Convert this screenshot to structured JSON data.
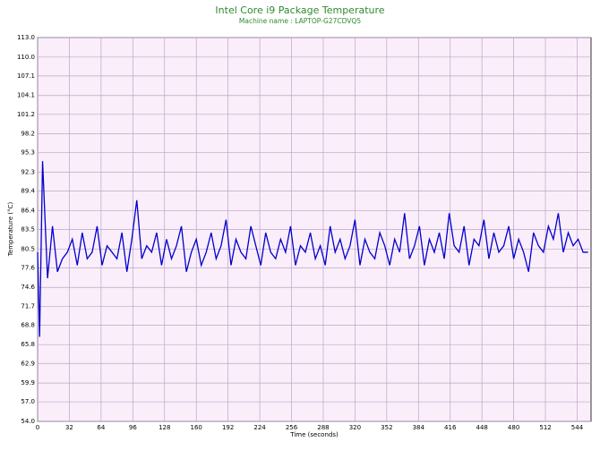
{
  "chart_data": {
    "type": "line",
    "title": "Intel Core i9 Package Temperature",
    "subtitle": "Machine name : LAPTOP-G27CDVQ5",
    "x_label": "Time (seconds)",
    "y_label": "Temperature (°C)",
    "x": [
      0,
      2,
      5,
      10,
      15,
      20,
      25,
      30,
      35,
      40,
      45,
      50,
      55,
      60,
      65,
      70,
      75,
      80,
      85,
      90,
      95,
      100,
      105,
      110,
      115,
      120,
      125,
      130,
      135,
      140,
      145,
      150,
      155,
      160,
      165,
      170,
      175,
      180,
      185,
      190,
      195,
      200,
      205,
      210,
      215,
      220,
      225,
      230,
      235,
      240,
      245,
      250,
      255,
      260,
      265,
      270,
      275,
      280,
      285,
      290,
      295,
      300,
      305,
      310,
      315,
      320,
      325,
      330,
      335,
      340,
      345,
      350,
      355,
      360,
      365,
      370,
      375,
      380,
      385,
      390,
      395,
      400,
      405,
      410,
      415,
      420,
      425,
      430,
      435,
      440,
      445,
      450,
      455,
      460,
      465,
      470,
      475,
      480,
      485,
      490,
      495,
      500,
      505,
      510,
      515,
      520,
      525,
      530,
      535,
      540,
      545,
      550,
      555
    ],
    "series": [
      {
        "name": "Package Temperature",
        "color": "#0000cc",
        "values": [
          80,
          67,
          94,
          76,
          84,
          77,
          79,
          80,
          82,
          78,
          83,
          79,
          80,
          84,
          78,
          81,
          80,
          79,
          83,
          77,
          82,
          88,
          79,
          81,
          80,
          83,
          78,
          82,
          79,
          81,
          84,
          77,
          80,
          82,
          78,
          80,
          83,
          79,
          81,
          85,
          78,
          82,
          80,
          79,
          84,
          81,
          78,
          83,
          80,
          79,
          82,
          80,
          84,
          78,
          81,
          80,
          83,
          79,
          81,
          78,
          84,
          80,
          82,
          79,
          81,
          85,
          78,
          82,
          80,
          79,
          83,
          81,
          78,
          82,
          80,
          86,
          79,
          81,
          84,
          78,
          82,
          80,
          83,
          79,
          86,
          81,
          80,
          84,
          78,
          82,
          81,
          85,
          79,
          83,
          80,
          81,
          84,
          79,
          82,
          80,
          77,
          83,
          81,
          80,
          84,
          82,
          86,
          80,
          83,
          81,
          82,
          80,
          80
        ]
      }
    ],
    "xlim": [
      0,
      558
    ],
    "ylim": [
      54,
      113
    ],
    "xticks": [
      0,
      32,
      64,
      96,
      128,
      160,
      192,
      224,
      256,
      288,
      320,
      352,
      384,
      416,
      448,
      480,
      512,
      544
    ],
    "yticks": [
      {
        "value": 54,
        "label": "54.0"
      },
      {
        "value": 57,
        "label": "57.0"
      },
      59.9,
      62.9,
      65.8,
      68.8,
      71.7,
      74.6,
      77.6,
      80.5,
      83.5,
      86.4,
      89.4,
      92.3,
      95.3,
      98.2,
      101.2,
      104.1,
      107.1,
      {
        "value": 110,
        "label": "110.0"
      },
      {
        "value": 113,
        "label": "113.0"
      }
    ],
    "grid": true
  }
}
